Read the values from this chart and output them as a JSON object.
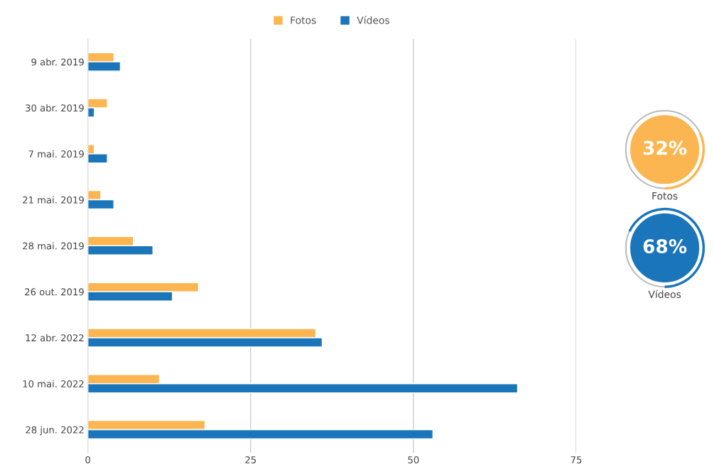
{
  "chart_data": [
    {
      "type": "bar",
      "orientation": "horizontal",
      "categories": [
        "9 abr. 2019",
        "30 abr. 2019",
        "7 mai. 2019",
        "21 mai. 2019",
        "28 mai. 2019",
        "26 out. 2019",
        "12 abr. 2022",
        "10 mai. 2022",
        "28 jun. 2022"
      ],
      "series": [
        {
          "name": "Fotos",
          "color": "#fbb651",
          "values": [
            4,
            3,
            1,
            2,
            7,
            17,
            35,
            11,
            18
          ]
        },
        {
          "name": "Vídeos",
          "color": "#1a75bb",
          "values": [
            5,
            1,
            3,
            4,
            10,
            13,
            36,
            66,
            53
          ]
        }
      ],
      "xlim": [
        0,
        75
      ],
      "xticks": [
        0,
        25,
        50,
        75
      ],
      "grid": "x",
      "legend": "top"
    },
    {
      "type": "other",
      "categories": [
        "Fotos",
        "Vídeos"
      ],
      "values": [
        32,
        68
      ],
      "value_labels": [
        "32%",
        "68%"
      ],
      "colors": [
        "#fbb651",
        "#1a75bb"
      ]
    }
  ]
}
